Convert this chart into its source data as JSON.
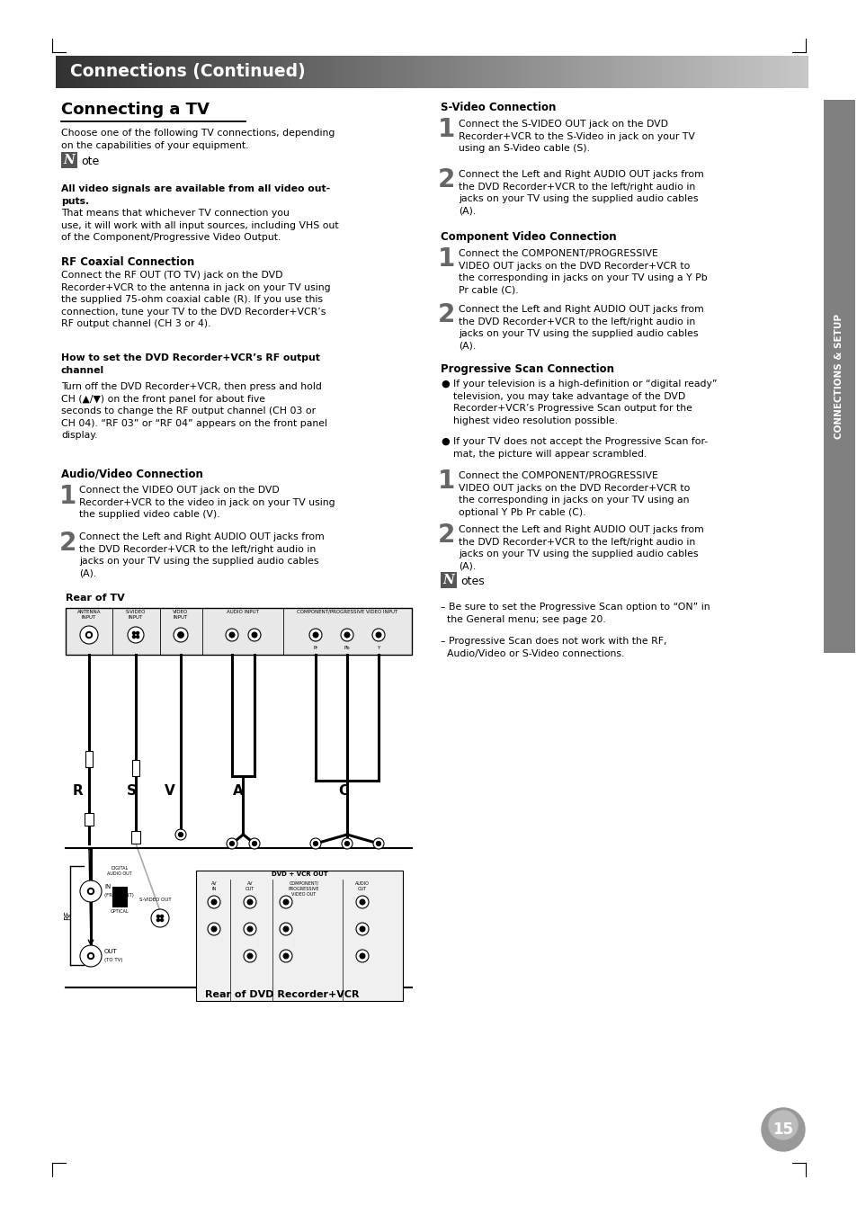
{
  "page_bg": "#ffffff",
  "header_text": "Connections (Continued)",
  "sidebar_text": "CONNECTIONS & SETUP",
  "page_number": "15",
  "content": {
    "left_title": "Connecting a TV",
    "left_subtitle": "Choose one of the following TV connections, depending\non the capabilities of your equipment.",
    "note_bold": "All video signals are available from all video out-\nputs.",
    "note_normal": " That means that whichever TV connection you\nuse, it will work with all input sources, including VHS out\nof the Component/Progressive Video Output.",
    "rf_title": "RF Coaxial Connection",
    "rf_text": "Connect the RF OUT (TO TV) jack on the DVD\nRecorder+VCR to the antenna in jack on your TV using\nthe supplied 75-ohm coaxial cable (R). If you use this\nconnection, tune your TV to the DVD Recorder+VCR’s\nRF output channel (CH 3 or 4).",
    "rf_bold_title": "How to set the DVD Recorder+VCR’s RF output\nchannel",
    "rf_bold_text": "Turn off the DVD Recorder+VCR, then press and hold\nCH (▲/▼) on the front panel for about five\nseconds to change the RF output channel (CH 03 or\nCH 04). “RF 03” or “RF 04” appears on the front panel\ndisplay.",
    "av_title": "Audio/Video Connection",
    "av_step1": "Connect the VIDEO OUT jack on the DVD\nRecorder+VCR to the video in jack on your TV using\nthe supplied video cable (V).",
    "av_step2": "Connect the Left and Right AUDIO OUT jacks from\nthe DVD Recorder+VCR to the left/right audio in\njacks on your TV using the supplied audio cables\n(A).",
    "rear_tv_label": "Rear of TV",
    "rear_dvd_label": "Rear of DVD Recorder+VCR",
    "svideo_title": "S-Video Connection",
    "svideo_step1": "Connect the S-VIDEO OUT jack on the DVD\nRecorder+VCR to the S-Video in jack on your TV\nusing an S-Video cable (S).",
    "svideo_step2": "Connect the Left and Right AUDIO OUT jacks from\nthe DVD Recorder+VCR to the left/right audio in\njacks on your TV using the supplied audio cables\n(A).",
    "component_title": "Component Video Connection",
    "component_step1": "Connect the COMPONENT/PROGRESSIVE\nVIDEO OUT jacks on the DVD Recorder+VCR to\nthe corresponding in jacks on your TV using a Y Pb\nPr cable (C).",
    "component_step2": "Connect the Left and Right AUDIO OUT jacks from\nthe DVD Recorder+VCR to the left/right audio in\njacks on your TV using the supplied audio cables\n(A).",
    "progressive_title": "Progressive Scan Connection",
    "progressive_bullet1": "If your television is a high-definition or “digital ready”\ntelevision, you may take advantage of the DVD\nRecorder+VCR’s Progressive Scan output for the\nhighest video resolution possible.",
    "progressive_bullet2": "If your TV does not accept the Progressive Scan for-\nmat, the picture will appear scrambled.",
    "progressive_step1": "Connect the COMPONENT/PROGRESSIVE\nVIDEO OUT jacks on the DVD Recorder+VCR to\nthe corresponding in jacks on your TV using an\noptional Y Pb Pr cable (C).",
    "progressive_step2": "Connect the Left and Right AUDIO OUT jacks from\nthe DVD Recorder+VCR to the left/right audio in\njacks on your TV using the supplied audio cables\n(A).",
    "notes_footer_1": "– Be sure to set the Progressive Scan option to “ON” in\n  the General menu; see page 20.",
    "notes_footer_2": "– Progressive Scan does not work with the RF,\n  Audio/Video or S-Video connections."
  }
}
